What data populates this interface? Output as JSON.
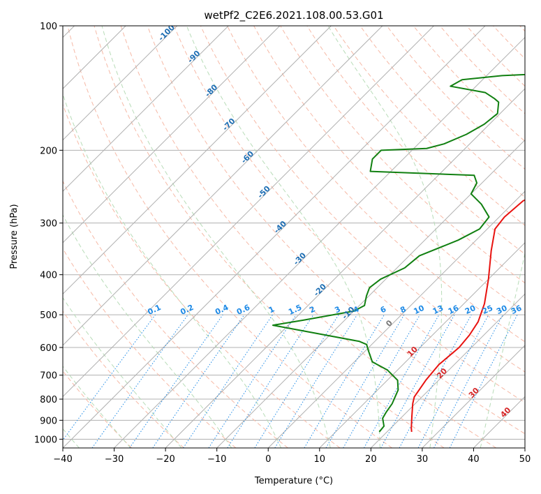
{
  "chart_data": {
    "type": "line",
    "title": "wetPf2_C2E6.2021.108.00.53.G01",
    "xlabel": "Temperature (°C)",
    "ylabel": "Pressure (hPa)",
    "xlim": [
      -40,
      50
    ],
    "ylim": [
      1050,
      100
    ],
    "x_ticks": [
      -40,
      -30,
      -20,
      -10,
      0,
      10,
      20,
      30,
      40,
      50
    ],
    "y_ticks": [
      100,
      200,
      300,
      400,
      500,
      600,
      700,
      800,
      900,
      1000
    ],
    "grid": true,
    "series": [
      {
        "name": "Temperature",
        "color": "#e8120f",
        "points": [
          [
            24.8,
            960
          ],
          [
            24.0,
            940
          ],
          [
            21.8,
            880
          ],
          [
            19.5,
            820
          ],
          [
            18.5,
            790
          ],
          [
            17.5,
            720
          ],
          [
            17.0,
            660
          ],
          [
            17.6,
            600
          ],
          [
            17.2,
            560
          ],
          [
            16.3,
            520
          ],
          [
            14.0,
            470
          ],
          [
            10.0,
            410
          ],
          [
            5.0,
            350
          ],
          [
            1.5,
            310
          ],
          [
            1.0,
            290
          ],
          [
            1.5,
            265
          ],
          [
            6.0,
            240
          ],
          [
            11.0,
            215
          ],
          [
            13.5,
            200
          ],
          [
            14.0,
            185
          ],
          [
            13.0,
            160
          ],
          [
            10.0,
            140
          ],
          [
            8.0,
            130
          ],
          [
            7.0,
            120
          ],
          [
            8.0,
            112
          ],
          [
            10.0,
            106
          ],
          [
            11.0,
            100
          ]
        ]
      },
      {
        "name": "Dew point",
        "color": "#118011",
        "points": [
          [
            18.5,
            960
          ],
          [
            18.3,
            930
          ],
          [
            16.5,
            890
          ],
          [
            16.0,
            860
          ],
          [
            15.5,
            820
          ],
          [
            14.0,
            760
          ],
          [
            12.0,
            720
          ],
          [
            8.0,
            680
          ],
          [
            3.5,
            650
          ],
          [
            0.5,
            610
          ],
          [
            -1.0,
            590
          ],
          [
            -3.0,
            580
          ],
          [
            -23.0,
            530
          ],
          [
            -18.0,
            515
          ],
          [
            -10.0,
            490
          ],
          [
            -9.0,
            475
          ],
          [
            -10.5,
            450
          ],
          [
            -11.5,
            430
          ],
          [
            -11.0,
            410
          ],
          [
            -8.5,
            385
          ],
          [
            -8.0,
            360
          ],
          [
            -3.5,
            330
          ],
          [
            -1.5,
            310
          ],
          [
            -2.0,
            290
          ],
          [
            -6.0,
            270
          ],
          [
            -10.0,
            255
          ],
          [
            -11.0,
            240
          ],
          [
            -13.0,
            230
          ],
          [
            -34.0,
            225
          ],
          [
            -36.0,
            210
          ],
          [
            -36.0,
            200
          ],
          [
            -27.5,
            198
          ],
          [
            -25.0,
            193
          ],
          [
            -22.5,
            183
          ],
          [
            -21.0,
            173
          ],
          [
            -20.5,
            163
          ],
          [
            -22.5,
            153
          ],
          [
            -24.0,
            150
          ],
          [
            -27.0,
            145
          ],
          [
            -35.0,
            140
          ],
          [
            -34.0,
            135
          ],
          [
            -27.0,
            132
          ],
          [
            -16.0,
            130
          ],
          [
            -9.0,
            127
          ],
          [
            -6.0,
            124
          ],
          [
            -8.0,
            119
          ],
          [
            -9.5,
            115
          ],
          [
            -8.5,
            110
          ],
          [
            -7.0,
            104
          ],
          [
            -6.5,
            100
          ]
        ]
      }
    ],
    "background_lines": {
      "isotherms_deg_c": [
        -140,
        -130,
        -120,
        -110,
        -100,
        -90,
        -80,
        -70,
        -60,
        -50,
        -40,
        -30,
        -20,
        -10,
        0,
        10,
        20,
        30,
        40,
        50
      ],
      "dry_adiabats_deg_c": [
        -30,
        -20,
        -10,
        0,
        10,
        20,
        30,
        40,
        50,
        60,
        70,
        80,
        90,
        100,
        110,
        120,
        130,
        140,
        150,
        160,
        170,
        180,
        190,
        200
      ],
      "moist_adiabats_deg_c": [
        -40,
        -30,
        -20,
        -10,
        0,
        10,
        20,
        30,
        40
      ]
    },
    "annotations": {
      "isotherm_labels": [
        "-100",
        "-90",
        "-80",
        "-70",
        "-60",
        "-50",
        "-40",
        "-30",
        "-20",
        "-10"
      ],
      "mixing_ratio_labels": [
        "0.1",
        "0.2",
        "0.4",
        "0.6",
        "1",
        "1.5",
        "2",
        "3",
        "4",
        "6",
        "8",
        "10",
        "13",
        "16",
        "20",
        "25",
        "30",
        "36"
      ],
      "mixing_ratio_values": [
        0.1,
        0.2,
        0.4,
        0.6,
        1,
        1.5,
        2,
        3,
        4,
        6,
        8,
        10,
        13,
        16,
        20,
        25,
        30,
        36
      ],
      "warm_isotherm_labels": [
        "0",
        "10",
        "20",
        "30",
        "40"
      ]
    }
  },
  "colors": {
    "temperature": "#e8120f",
    "dewpoint": "#118011",
    "isotherm_label": "#1f6fb4",
    "mixing_ratio": "#1e8ae6",
    "warm_label": "#d62728",
    "zero_label": "#777777"
  }
}
